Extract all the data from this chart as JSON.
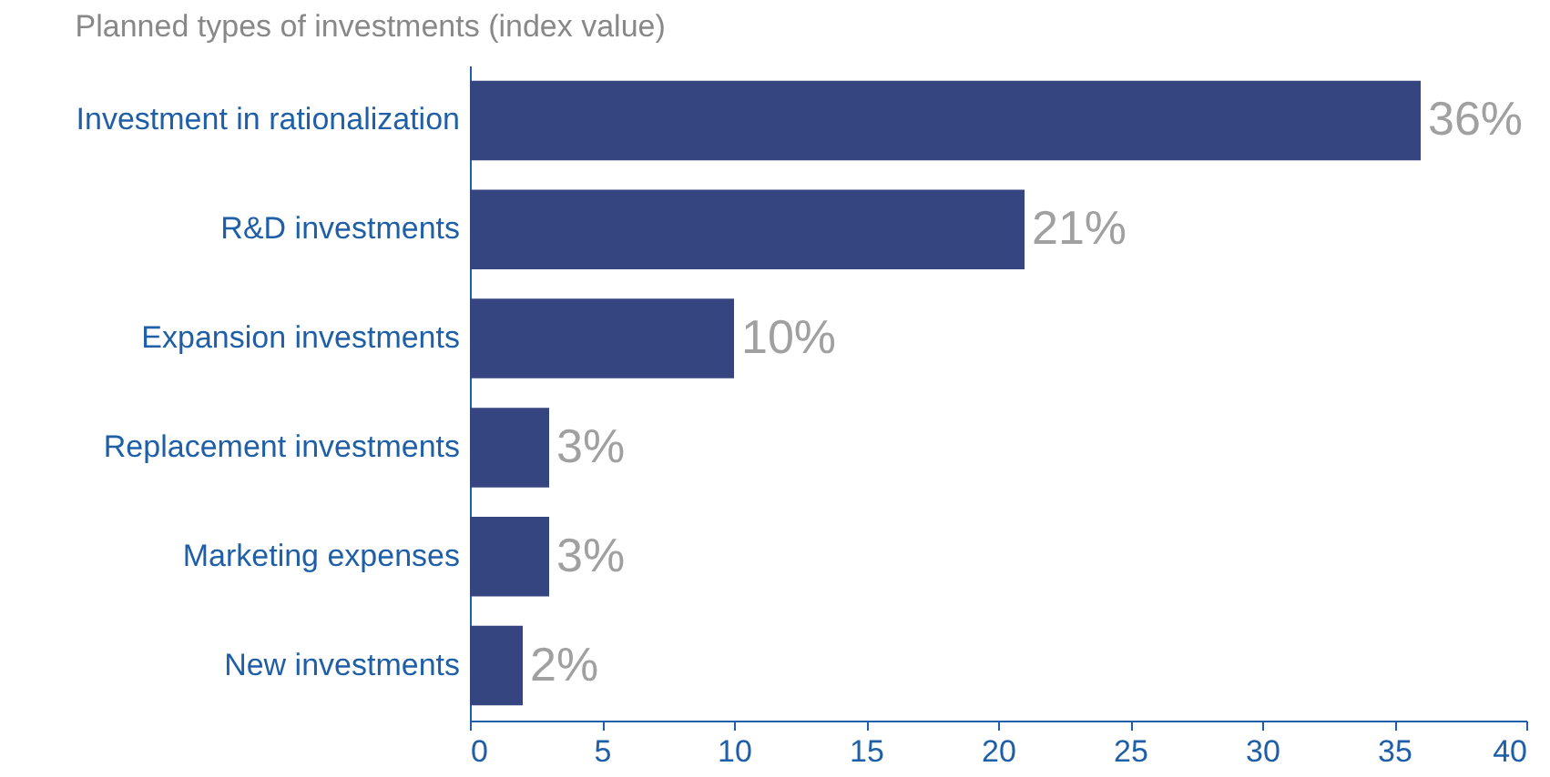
{
  "chart_data": {
    "type": "bar",
    "orientation": "horizontal",
    "title": "Planned types of investments (index value)",
    "categories": [
      "Investment in rationalization",
      "R&D investments",
      "Expansion investments",
      "Replacement investments",
      "Marketing expenses",
      "New investments"
    ],
    "values": [
      36,
      21,
      10,
      3,
      3,
      2
    ],
    "value_labels": [
      "36%",
      "21%",
      "10%",
      "3%",
      "3%",
      "2%"
    ],
    "color": "#34457f",
    "xlim": [
      0,
      40
    ],
    "xticks": [
      0,
      5,
      10,
      15,
      20,
      25,
      30,
      35,
      40
    ],
    "grid": false
  }
}
